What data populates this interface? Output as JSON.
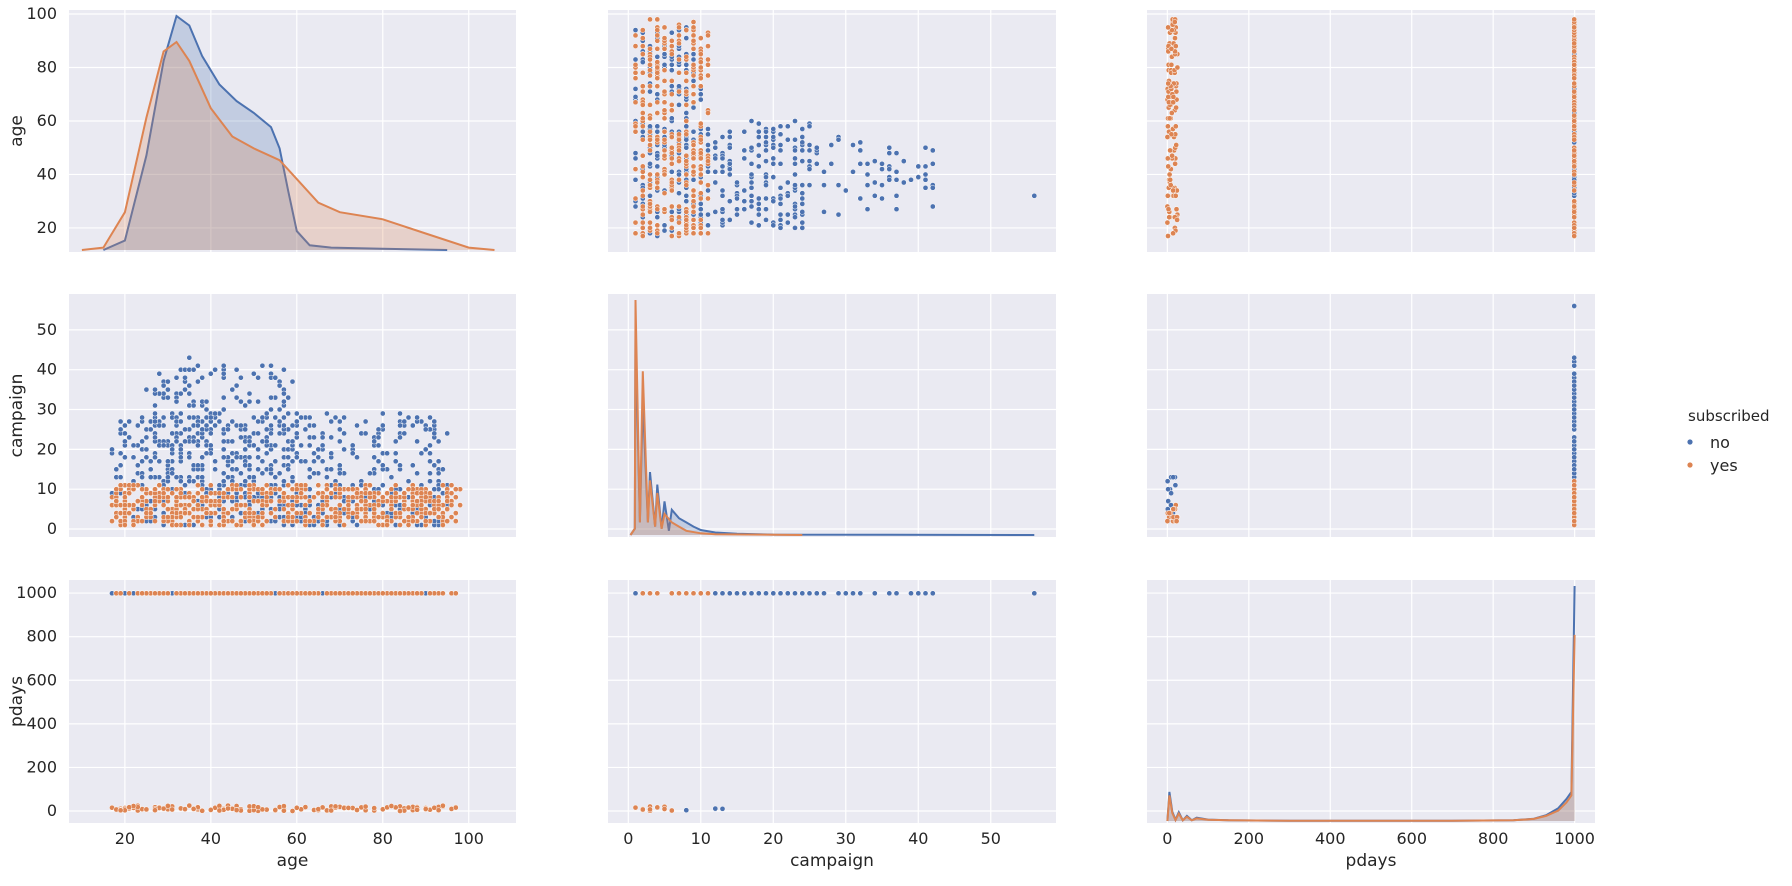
{
  "legend": {
    "title": "subscribed",
    "entries": [
      {
        "label": "no",
        "color": "#4c72b0"
      },
      {
        "label": "yes",
        "color": "#dd8452"
      }
    ]
  },
  "chart_data": {
    "type": "pairplot",
    "hue": "subscribed",
    "variables": [
      {
        "name": "age",
        "label": "age",
        "range": [
          7,
          111
        ],
        "ticks": [
          20,
          40,
          60,
          80,
          100
        ],
        "axis_ticks_y": [
          20,
          40,
          60,
          80,
          100
        ],
        "axis_range_y": [
          11,
          101.5
        ]
      },
      {
        "name": "campaign",
        "label": "campaign",
        "range": [
          -2.8,
          59
        ],
        "ticks": [
          0,
          10,
          20,
          30,
          40,
          50
        ],
        "axis_ticks_y": [
          0,
          10,
          20,
          30,
          40,
          50
        ],
        "axis_range_y": [
          -2,
          59
        ]
      },
      {
        "name": "pdays",
        "label": "pdays",
        "range": [
          -50,
          1050
        ],
        "ticks": [
          0,
          200,
          400,
          600,
          800,
          1000
        ],
        "axis_ticks_y": [
          0,
          200,
          400,
          600,
          800,
          1000
        ],
        "axis_range_y": [
          -55,
          1060
        ]
      }
    ],
    "series": [
      {
        "name": "no",
        "color": "#4c72b0"
      },
      {
        "name": "yes",
        "color": "#dd8452"
      }
    ],
    "diagonal_kde": {
      "age": {
        "no": [
          [
            15,
            0
          ],
          [
            20,
            4
          ],
          [
            25,
            40
          ],
          [
            29,
            80
          ],
          [
            32,
            99
          ],
          [
            35,
            95
          ],
          [
            38,
            82
          ],
          [
            42,
            70
          ],
          [
            46,
            63
          ],
          [
            50,
            58
          ],
          [
            54,
            52
          ],
          [
            56,
            43
          ],
          [
            58,
            25
          ],
          [
            60,
            8
          ],
          [
            63,
            2
          ],
          [
            68,
            1
          ],
          [
            80,
            0.5
          ],
          [
            95,
            0
          ]
        ],
        "yes": [
          [
            10,
            0
          ],
          [
            15,
            1
          ],
          [
            20,
            16
          ],
          [
            25,
            56
          ],
          [
            29,
            84
          ],
          [
            32,
            88
          ],
          [
            35,
            80
          ],
          [
            40,
            60
          ],
          [
            45,
            48
          ],
          [
            50,
            43
          ],
          [
            56,
            38
          ],
          [
            60,
            30
          ],
          [
            65,
            20
          ],
          [
            70,
            16
          ],
          [
            80,
            13
          ],
          [
            90,
            7
          ],
          [
            100,
            1
          ],
          [
            106,
            0
          ]
        ]
      },
      "campaign": {
        "no": [
          [
            0.3,
            0
          ],
          [
            0.9,
            1.5
          ],
          [
            1,
            48
          ],
          [
            1.6,
            3
          ],
          [
            2,
            32
          ],
          [
            2.7,
            3
          ],
          [
            3,
            15
          ],
          [
            3.7,
            2
          ],
          [
            4,
            12
          ],
          [
            4.6,
            1.5
          ],
          [
            5,
            8
          ],
          [
            5.6,
            1
          ],
          [
            6,
            6
          ],
          [
            7,
            4
          ],
          [
            8,
            3
          ],
          [
            9,
            2
          ],
          [
            10,
            1.2
          ],
          [
            12,
            0.6
          ],
          [
            15,
            0.3
          ],
          [
            20,
            0.1
          ],
          [
            56,
            0
          ]
        ],
        "yes": [
          [
            0.3,
            0
          ],
          [
            0.9,
            1.5
          ],
          [
            1,
            56
          ],
          [
            1.6,
            3
          ],
          [
            2,
            39
          ],
          [
            2.7,
            3
          ],
          [
            3,
            13
          ],
          [
            3.7,
            2
          ],
          [
            4,
            10
          ],
          [
            4.6,
            1.5
          ],
          [
            5,
            5
          ],
          [
            6,
            3
          ],
          [
            7,
            2
          ],
          [
            8,
            1
          ],
          [
            10,
            0.4
          ],
          [
            12,
            0.2
          ],
          [
            24,
            0
          ]
        ]
      },
      "pdays": {
        "no": [
          [
            0,
            0
          ],
          [
            5,
            125
          ],
          [
            12,
            40
          ],
          [
            20,
            5
          ],
          [
            28,
            38
          ],
          [
            38,
            3
          ],
          [
            48,
            22
          ],
          [
            60,
            3
          ],
          [
            72,
            14
          ],
          [
            100,
            6
          ],
          [
            150,
            3
          ],
          [
            300,
            1
          ],
          [
            700,
            1
          ],
          [
            850,
            3
          ],
          [
            900,
            10
          ],
          [
            930,
            25
          ],
          [
            960,
            55
          ],
          [
            980,
            95
          ],
          [
            992,
            125
          ],
          [
            1000,
            1010
          ]
        ],
        "yes": [
          [
            0,
            0
          ],
          [
            5,
            110
          ],
          [
            12,
            35
          ],
          [
            20,
            4
          ],
          [
            28,
            32
          ],
          [
            38,
            3
          ],
          [
            48,
            18
          ],
          [
            60,
            3
          ],
          [
            72,
            11
          ],
          [
            100,
            5
          ],
          [
            150,
            3
          ],
          [
            300,
            1
          ],
          [
            700,
            1
          ],
          [
            850,
            3
          ],
          [
            900,
            9
          ],
          [
            930,
            22
          ],
          [
            960,
            45
          ],
          [
            980,
            80
          ],
          [
            992,
            110
          ],
          [
            1000,
            800
          ]
        ]
      }
    },
    "scatter_bands": {
      "age_vs_campaign": {
        "no": [
          [
            17,
            95,
            1,
            29,
            520
          ],
          [
            25,
            60,
            1,
            40,
            260
          ],
          [
            60,
            95,
            1,
            10,
            60
          ],
          [
            29,
            57,
            40,
            43,
            8
          ]
        ],
        "yes": [
          [
            17,
            98,
            1,
            11,
            620
          ]
        ]
      },
      "age_vs_pdays": {
        "no": [
          [
            17,
            95,
            999,
            999,
            200
          ]
        ],
        "yes": [
          [
            17,
            98,
            999,
            999,
            200
          ],
          [
            17,
            98,
            0,
            25,
            140
          ]
        ]
      },
      "campaign_vs_age": {
        "no": [
          [
            1,
            10,
            17,
            95,
            260
          ],
          [
            10,
            25,
            20,
            60,
            200
          ],
          [
            25,
            43,
            25,
            55,
            60
          ],
          [
            56,
            56,
            32,
            32,
            1
          ]
        ],
        "yes": [
          [
            1,
            11,
            17,
            98,
            320
          ]
        ]
      },
      "campaign_vs_pdays": {
        "no": [
          [
            1,
            43,
            999,
            999,
            60
          ],
          [
            56,
            56,
            999,
            999,
            1
          ],
          [
            8,
            13,
            0,
            20,
            3
          ]
        ],
        "yes": [
          [
            1,
            13,
            999,
            999,
            20
          ],
          [
            1,
            6,
            0,
            25,
            12
          ]
        ]
      },
      "pdays_vs_age": {
        "no": [
          [
            999,
            999,
            17,
            95,
            120
          ]
        ],
        "yes": [
          [
            0,
            25,
            17,
            98,
            120
          ],
          [
            999,
            999,
            17,
            98,
            120
          ]
        ]
      },
      "pdays_vs_campaign": {
        "no": [
          [
            999,
            999,
            1,
            43,
            80
          ],
          [
            999,
            999,
            56,
            56,
            1
          ],
          [
            0,
            25,
            1,
            13,
            20
          ]
        ],
        "yes": [
          [
            999,
            999,
            1,
            12,
            30
          ],
          [
            0,
            25,
            1,
            6,
            20
          ]
        ]
      }
    }
  }
}
